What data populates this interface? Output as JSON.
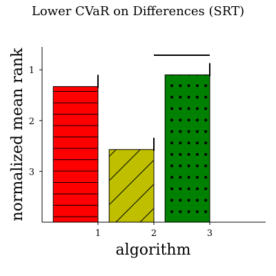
{
  "chart_data": {
    "type": "bar",
    "title": "Lower CVaR on Differences (SRT)",
    "xlabel": "algorithm",
    "ylabel": "normalized mean rank",
    "x_ticks": [
      "1",
      "2",
      "3"
    ],
    "y_ticks": [
      "1",
      "2",
      "3"
    ],
    "y_inverted": true,
    "xlim": [
      0,
      4
    ],
    "ylim": [
      4.0,
      0.55
    ],
    "grid": false,
    "bars": [
      {
        "x": 1,
        "value": 1.33,
        "color": "#ff0000",
        "hatch": "horizontal-lines"
      },
      {
        "x": 2,
        "value": 2.57,
        "color": "#bfbf00",
        "hatch": "diagonal-lines"
      },
      {
        "x": 3,
        "value": 1.1,
        "color": "#008000",
        "hatch": "dots"
      }
    ],
    "significance_bracket": {
      "from": 2,
      "to": 3
    }
  }
}
